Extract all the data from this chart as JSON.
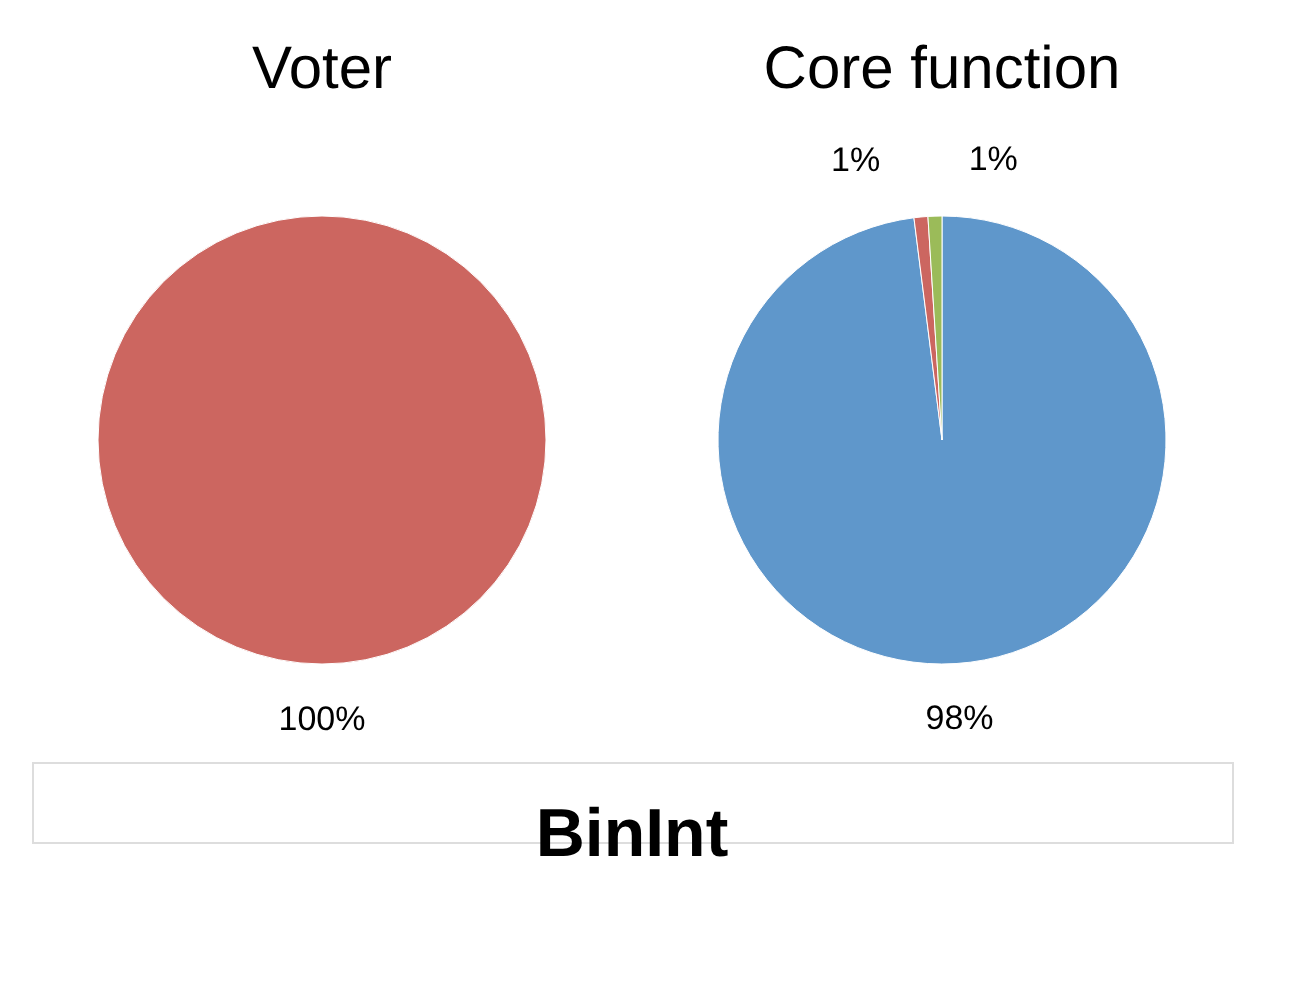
{
  "chart_data": [
    {
      "type": "pie",
      "title": "Voter",
      "categories": [
        null
      ],
      "values": [
        100
      ],
      "colors": [
        "#cc6660"
      ],
      "value_labels": [
        "100%"
      ]
    },
    {
      "type": "pie",
      "title": "Core function",
      "categories": [
        null,
        null,
        null
      ],
      "values": [
        98,
        1,
        1
      ],
      "colors": [
        "#5f97cb",
        "#cc6660",
        "#9bbb59"
      ],
      "value_labels": [
        "98%",
        "1%",
        "1%"
      ],
      "annotations": [
        "BinInt"
      ]
    }
  ]
}
